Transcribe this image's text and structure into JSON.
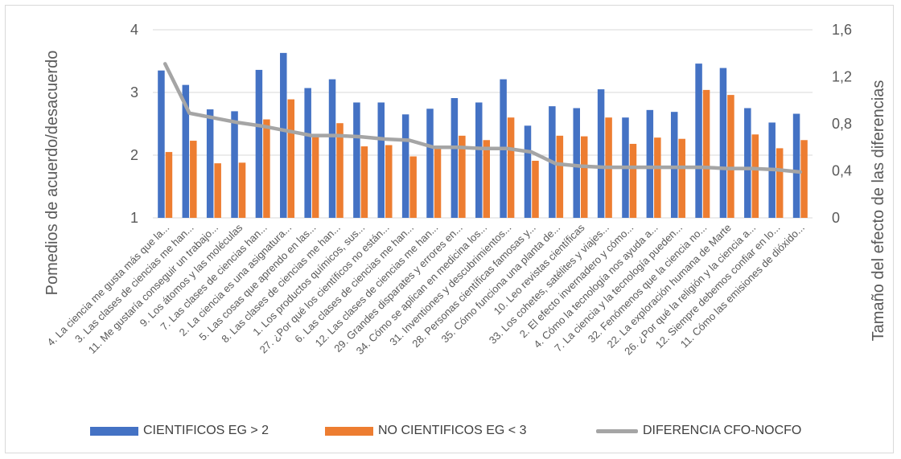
{
  "chart_data": {
    "type": "bar",
    "title": "",
    "ylabel": "Pomedios de acuerdo/desacuerdo",
    "y2label": "Tamaño del efecto de las diferencias",
    "ylim": [
      1,
      4
    ],
    "yticks": [
      "1",
      "2",
      "3",
      "4"
    ],
    "y2lim": [
      0,
      1.6
    ],
    "y2ticks": [
      "0",
      "0,4",
      "0,8",
      "1,2",
      "1,6"
    ],
    "grid": true,
    "legend_position": "bottom",
    "categories": [
      "4. La ciencia me gusta más que la...",
      "3. Las clases de ciencias me han...",
      "11. Me gustaría conseguir un trabajo...",
      "9. Los átomos y las moléculas",
      "7. Las clases de ciencias han...",
      "2. La ciencia es una asignatura...",
      "5. Las cosas que aprendo en las...",
      "8. Las clases de ciencias me han...",
      "1. Los productos químicos, sus...",
      "27. ¿Por qué los científicos no están...",
      "6. Las clases de ciencias me han...",
      "12. Las clases de ciencias me han...",
      "29. Grandes disparates y errores en...",
      "34. Cómo se aplican en medicina los...",
      "31. Inventiones y descubrimientos...",
      "28. Personas científicas famosas y...",
      "35. Cómo funciona una planta de...",
      "10. Leo revistas científicas",
      "33. Los cohetes, satélites y viajes...",
      "2. El efecto invernadero y cómo...",
      "4. Cómo la tecnología nos ayuda a...",
      "7. La ciencia y la tecnología pueden...",
      "32. Fenómenos que la ciencia no...",
      "22. La exploración humana de Marte",
      "26. ¿Por qué la religión y la ciencia a...",
      "12. Siempre debemos confiar en lo...",
      "11. Cómo las emisiones de dióxido..."
    ],
    "series": [
      {
        "name": "CIENTIFICOS EG > 2",
        "type": "bar",
        "axis": "left",
        "color": "#4472c4",
        "values": [
          3.35,
          3.12,
          2.73,
          2.7,
          3.36,
          3.63,
          3.07,
          3.21,
          2.84,
          2.84,
          2.65,
          2.74,
          2.91,
          2.84,
          3.21,
          2.47,
          2.78,
          2.75,
          3.05,
          2.6,
          2.72,
          2.69,
          3.46,
          3.39,
          2.75,
          2.52,
          2.66
        ]
      },
      {
        "name": "NO CIENTIFICOS EG < 3",
        "type": "bar",
        "axis": "left",
        "color": "#ed7d31",
        "values": [
          2.05,
          2.23,
          1.87,
          1.88,
          2.57,
          2.89,
          2.31,
          2.51,
          2.14,
          2.16,
          1.98,
          2.14,
          2.31,
          2.24,
          2.6,
          1.91,
          2.31,
          2.3,
          2.6,
          2.18,
          2.28,
          2.26,
          3.04,
          2.96,
          2.33,
          2.11,
          2.24
        ]
      },
      {
        "name": "DIFERENCIA CFO-NOCFO",
        "type": "line",
        "axis": "right",
        "color": "#a5a5a5",
        "values": [
          1.31,
          0.89,
          0.85,
          0.81,
          0.78,
          0.74,
          0.7,
          0.7,
          0.69,
          0.67,
          0.66,
          0.6,
          0.6,
          0.59,
          0.59,
          0.56,
          0.46,
          0.44,
          0.43,
          0.43,
          0.43,
          0.43,
          0.43,
          0.42,
          0.42,
          0.41,
          0.39
        ]
      }
    ]
  }
}
